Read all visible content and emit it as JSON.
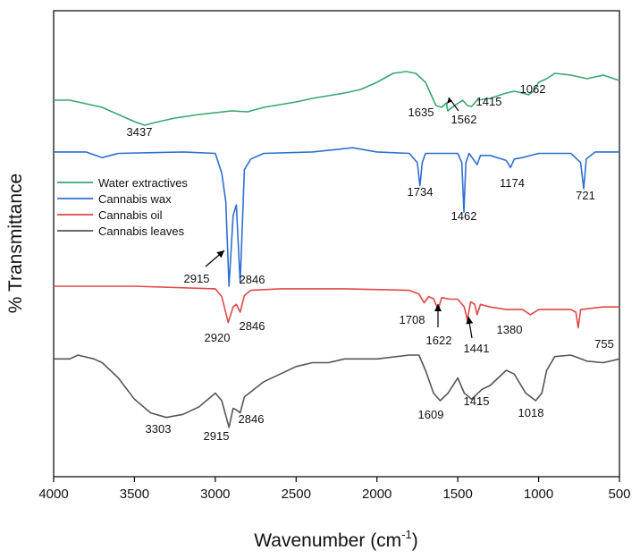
{
  "chart_data": {
    "type": "line",
    "xlabel": "Wavenumber (cm",
    "xlabel_sup": "-1",
    "xlabel_close": ")",
    "ylabel": "% Transmittance",
    "xlim": [
      4000,
      500
    ],
    "x_reversed": true,
    "x_ticks": [
      "4000",
      "3500",
      "3000",
      "2500",
      "2000",
      "1500",
      "1000",
      "500"
    ],
    "y_ticks_shown": false,
    "grid": false,
    "legend_position": "upper-left",
    "series": [
      {
        "name": "Water extractives",
        "color": "#3aa56f",
        "points": [
          [
            4000,
            0.5
          ],
          [
            3900,
            0.5
          ],
          [
            3800,
            0.54
          ],
          [
            3700,
            0.58
          ],
          [
            3600,
            0.66
          ],
          [
            3500,
            0.74
          ],
          [
            3437,
            0.78
          ],
          [
            3350,
            0.74
          ],
          [
            3250,
            0.7
          ],
          [
            3100,
            0.66
          ],
          [
            3000,
            0.64
          ],
          [
            2900,
            0.62
          ],
          [
            2800,
            0.63
          ],
          [
            2700,
            0.58
          ],
          [
            2600,
            0.55
          ],
          [
            2500,
            0.52
          ],
          [
            2400,
            0.48
          ],
          [
            2300,
            0.45
          ],
          [
            2200,
            0.42
          ],
          [
            2100,
            0.38
          ],
          [
            2000,
            0.3
          ],
          [
            1900,
            0.2
          ],
          [
            1820,
            0.18
          ],
          [
            1760,
            0.2
          ],
          [
            1700,
            0.3
          ],
          [
            1660,
            0.46
          ],
          [
            1635,
            0.56
          ],
          [
            1600,
            0.58
          ],
          [
            1570,
            0.53
          ],
          [
            1562,
            0.62
          ],
          [
            1520,
            0.56
          ],
          [
            1470,
            0.5
          ],
          [
            1440,
            0.56
          ],
          [
            1415,
            0.57
          ],
          [
            1380,
            0.5
          ],
          [
            1300,
            0.48
          ],
          [
            1200,
            0.42
          ],
          [
            1150,
            0.4
          ],
          [
            1100,
            0.42
          ],
          [
            1062,
            0.44
          ],
          [
            1030,
            0.4
          ],
          [
            1000,
            0.3
          ],
          [
            950,
            0.26
          ],
          [
            900,
            0.2
          ],
          [
            800,
            0.22
          ],
          [
            700,
            0.26
          ],
          [
            600,
            0.22
          ],
          [
            500,
            0.28
          ]
        ]
      },
      {
        "name": "Cannabis wax",
        "color": "#2f6fd0",
        "points": [
          [
            4000,
            0.1
          ],
          [
            3800,
            0.1
          ],
          [
            3700,
            0.18
          ],
          [
            3600,
            0.12
          ],
          [
            3200,
            0.1
          ],
          [
            3000,
            0.12
          ],
          [
            2960,
            0.4
          ],
          [
            2935,
            0.8
          ],
          [
            2915,
            2.0
          ],
          [
            2890,
            1.0
          ],
          [
            2870,
            0.85
          ],
          [
            2846,
            1.95
          ],
          [
            2820,
            0.35
          ],
          [
            2780,
            0.2
          ],
          [
            2700,
            0.12
          ],
          [
            2400,
            0.1
          ],
          [
            2150,
            0.04
          ],
          [
            2000,
            0.1
          ],
          [
            1800,
            0.12
          ],
          [
            1750,
            0.25
          ],
          [
            1734,
            0.58
          ],
          [
            1720,
            0.25
          ],
          [
            1700,
            0.12
          ],
          [
            1500,
            0.12
          ],
          [
            1475,
            0.25
          ],
          [
            1462,
            0.95
          ],
          [
            1450,
            0.25
          ],
          [
            1430,
            0.12
          ],
          [
            1380,
            0.28
          ],
          [
            1360,
            0.15
          ],
          [
            1300,
            0.15
          ],
          [
            1200,
            0.22
          ],
          [
            1174,
            0.32
          ],
          [
            1150,
            0.2
          ],
          [
            1100,
            0.18
          ],
          [
            1000,
            0.12
          ],
          [
            800,
            0.12
          ],
          [
            740,
            0.25
          ],
          [
            721,
            0.62
          ],
          [
            705,
            0.2
          ],
          [
            650,
            0.1
          ],
          [
            500,
            0.1
          ]
        ]
      },
      {
        "name": "Cannabis oil",
        "color": "#e04848",
        "points": [
          [
            4000,
            0.0
          ],
          [
            3500,
            0.0
          ],
          [
            3000,
            0.05
          ],
          [
            2960,
            0.2
          ],
          [
            2920,
            0.7
          ],
          [
            2890,
            0.4
          ],
          [
            2870,
            0.35
          ],
          [
            2846,
            0.5
          ],
          [
            2820,
            0.18
          ],
          [
            2780,
            0.08
          ],
          [
            2600,
            0.05
          ],
          [
            2200,
            0.05
          ],
          [
            1800,
            0.08
          ],
          [
            1740,
            0.15
          ],
          [
            1708,
            0.32
          ],
          [
            1680,
            0.2
          ],
          [
            1650,
            0.24
          ],
          [
            1622,
            0.45
          ],
          [
            1600,
            0.22
          ],
          [
            1550,
            0.25
          ],
          [
            1500,
            0.25
          ],
          [
            1460,
            0.4
          ],
          [
            1441,
            0.65
          ],
          [
            1420,
            0.3
          ],
          [
            1395,
            0.35
          ],
          [
            1380,
            0.55
          ],
          [
            1360,
            0.35
          ],
          [
            1300,
            0.4
          ],
          [
            1200,
            0.45
          ],
          [
            1100,
            0.45
          ],
          [
            1050,
            0.55
          ],
          [
            1000,
            0.45
          ],
          [
            900,
            0.45
          ],
          [
            800,
            0.45
          ],
          [
            770,
            0.5
          ],
          [
            755,
            0.8
          ],
          [
            740,
            0.45
          ],
          [
            600,
            0.4
          ],
          [
            500,
            0.4
          ]
        ]
      },
      {
        "name": "Cannabis leaves",
        "color": "#555555",
        "points": [
          [
            4000,
            0.05
          ],
          [
            3900,
            0.05
          ],
          [
            3850,
            0.0
          ],
          [
            3750,
            0.05
          ],
          [
            3700,
            0.1
          ],
          [
            3600,
            0.3
          ],
          [
            3500,
            0.58
          ],
          [
            3400,
            0.76
          ],
          [
            3303,
            0.82
          ],
          [
            3200,
            0.78
          ],
          [
            3100,
            0.68
          ],
          [
            3000,
            0.5
          ],
          [
            2960,
            0.6
          ],
          [
            2915,
            0.95
          ],
          [
            2890,
            0.7
          ],
          [
            2870,
            0.72
          ],
          [
            2846,
            0.76
          ],
          [
            2820,
            0.55
          ],
          [
            2700,
            0.35
          ],
          [
            2600,
            0.25
          ],
          [
            2500,
            0.15
          ],
          [
            2400,
            0.1
          ],
          [
            2300,
            0.1
          ],
          [
            2200,
            0.05
          ],
          [
            2000,
            0.05
          ],
          [
            1800,
            0.0
          ],
          [
            1740,
            0.0
          ],
          [
            1700,
            0.2
          ],
          [
            1650,
            0.5
          ],
          [
            1609,
            0.6
          ],
          [
            1560,
            0.5
          ],
          [
            1500,
            0.3
          ],
          [
            1460,
            0.5
          ],
          [
            1415,
            0.58
          ],
          [
            1350,
            0.45
          ],
          [
            1300,
            0.4
          ],
          [
            1250,
            0.3
          ],
          [
            1200,
            0.2
          ],
          [
            1150,
            0.25
          ],
          [
            1080,
            0.5
          ],
          [
            1018,
            0.6
          ],
          [
            980,
            0.5
          ],
          [
            950,
            0.2
          ],
          [
            900,
            0.02
          ],
          [
            800,
            0.0
          ],
          [
            700,
            0.08
          ],
          [
            600,
            0.1
          ],
          [
            500,
            0.05
          ]
        ]
      }
    ],
    "annotations": [
      {
        "text": "3437",
        "series": 0
      },
      {
        "text": "1635",
        "series": 0
      },
      {
        "text": "1562",
        "series": 0
      },
      {
        "text": "1415",
        "series": 0
      },
      {
        "text": "1062",
        "series": 0
      },
      {
        "text": "2915",
        "series": 1
      },
      {
        "text": "2846",
        "series": 1
      },
      {
        "text": "1734",
        "series": 1
      },
      {
        "text": "1462",
        "series": 1
      },
      {
        "text": "1174",
        "series": 1
      },
      {
        "text": "721",
        "series": 1
      },
      {
        "text": "2920",
        "series": 2
      },
      {
        "text": "2846",
        "series": 2
      },
      {
        "text": "1708",
        "series": 2
      },
      {
        "text": "1622",
        "series": 2
      },
      {
        "text": "1441",
        "series": 2
      },
      {
        "text": "1380",
        "series": 2
      },
      {
        "text": "755",
        "series": 2
      },
      {
        "text": "3303",
        "series": 3
      },
      {
        "text": "2915",
        "series": 3
      },
      {
        "text": "2846",
        "series": 3
      },
      {
        "text": "1609",
        "series": 3
      },
      {
        "text": "1415",
        "series": 3
      },
      {
        "text": "1018",
        "series": 3
      }
    ]
  }
}
